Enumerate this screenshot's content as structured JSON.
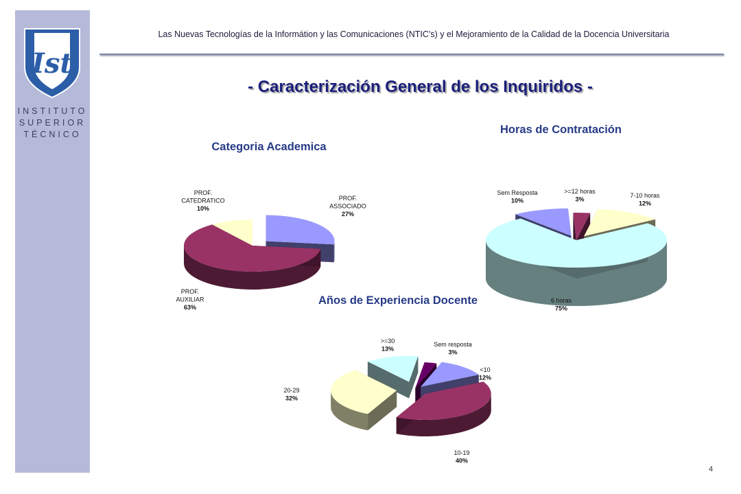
{
  "sidebar": {
    "logo_text": "Ist",
    "institute_lines": [
      "INSTITUTO",
      "SUPERIOR",
      "TÉCNICO"
    ]
  },
  "header": {
    "text": "Las Nuevas Tecnologías de la Informátion y las Comunicaciones (NTIC’s) y el Mejoramiento de la Calidad de la Docencia  Universitaria"
  },
  "main_title": "- Caracterización General de los Inquiridos -",
  "page_number": "4",
  "colors": {
    "sidebar": "#b5bad8",
    "title": "#1b1f7a",
    "chart_title": "#263a86",
    "slice_blue": "#9999ff",
    "slice_maroon": "#993366",
    "slice_cream": "#ffffcc",
    "slice_cyan": "#ccffff",
    "slice_purple": "#660066"
  },
  "chart_data": [
    {
      "type": "pie",
      "title": "Categoria Academica",
      "slices": [
        {
          "label": "PROF. ASSOCIADO",
          "value": 27,
          "pct": "27%",
          "color": "#9999ff"
        },
        {
          "label": "PROF. AUXILIAR",
          "value": 63,
          "pct": "63%",
          "color": "#993366"
        },
        {
          "label": "PROF. CATEDRATICO",
          "value": 10,
          "pct": "10%",
          "color": "#ffffcc"
        }
      ]
    },
    {
      "type": "pie",
      "title": "Horas de Contratación",
      "slices": [
        {
          "label": ">=12 horas",
          "value": 3,
          "pct": "3%",
          "color": "#993366"
        },
        {
          "label": "7-10 horas",
          "value": 12,
          "pct": "12%",
          "color": "#ffffcc"
        },
        {
          "label": "6 horas",
          "value": 75,
          "pct": "75%",
          "color": "#ccffff"
        },
        {
          "label": "Sem Resposta",
          "value": 10,
          "pct": "10%",
          "color": "#9999ff"
        }
      ]
    },
    {
      "type": "pie",
      "title": "Años de Experiencia Docente",
      "slices": [
        {
          "label": "Sem resposta",
          "value": 3,
          "pct": "3%",
          "color": "#660066"
        },
        {
          "label": "<10",
          "value": 12,
          "pct": "12%",
          "color": "#9999ff"
        },
        {
          "label": "10-19",
          "value": 40,
          "pct": "40%",
          "color": "#993366"
        },
        {
          "label": "20-29",
          "value": 32,
          "pct": "32%",
          "color": "#ffffcc"
        },
        {
          "label": ">=30",
          "value": 13,
          "pct": "13%",
          "color": "#ccffff"
        }
      ]
    }
  ]
}
